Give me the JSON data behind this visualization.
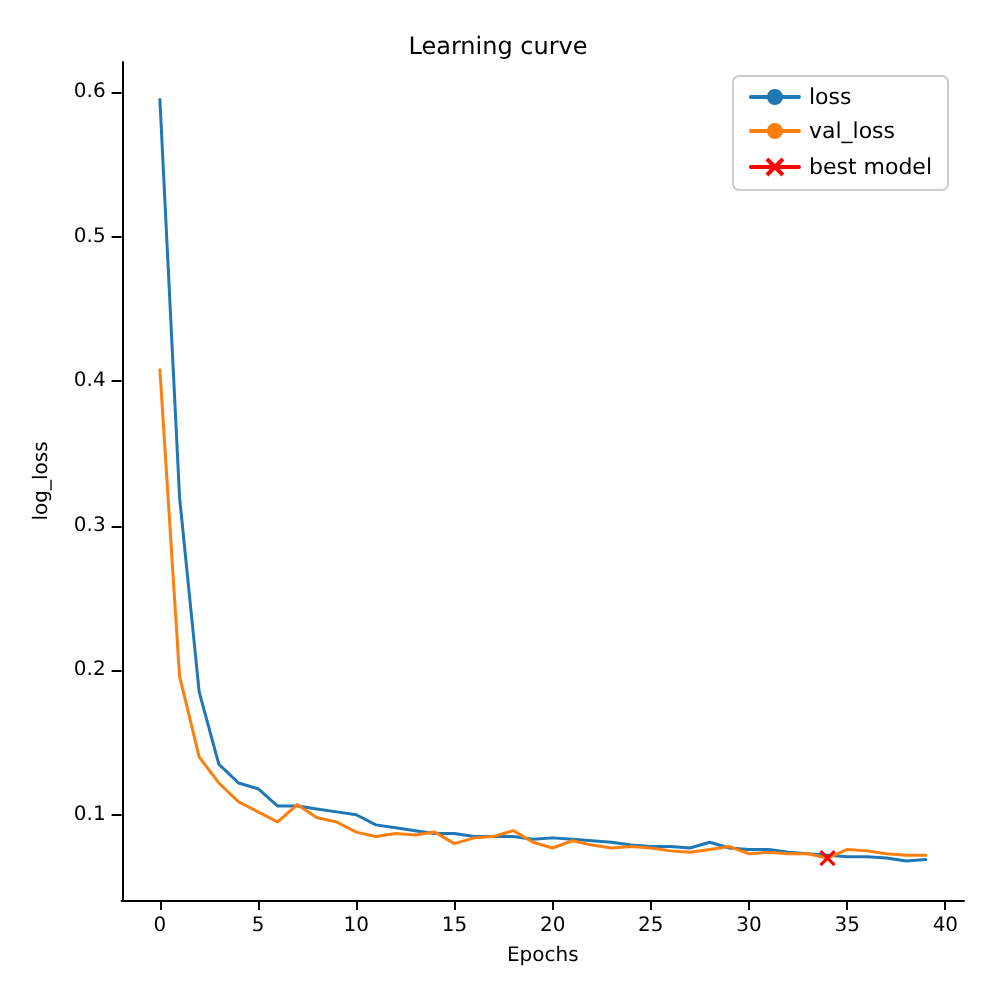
{
  "chart_data": {
    "type": "line",
    "title": "Learning curve",
    "xlabel": "Epochs",
    "ylabel": "log_loss",
    "x": [
      0,
      1,
      2,
      3,
      4,
      5,
      6,
      7,
      8,
      9,
      10,
      11,
      12,
      13,
      14,
      15,
      16,
      17,
      18,
      19,
      20,
      21,
      22,
      23,
      24,
      25,
      26,
      27,
      28,
      29,
      30,
      31,
      32,
      33,
      34,
      35,
      36,
      37,
      38,
      39
    ],
    "xlim": [
      -1.95,
      40.95
    ],
    "ylim": [
      0.041,
      0.621
    ],
    "xticks": [
      0,
      5,
      10,
      15,
      20,
      25,
      30,
      35,
      40
    ],
    "yticks": [
      0.1,
      0.2,
      0.3,
      0.4,
      0.5,
      0.6
    ],
    "grid": false,
    "legend": "top right",
    "series": [
      {
        "name": "loss",
        "color": "#1f77b4",
        "marker": "none",
        "values": [
          0.595,
          0.32,
          0.185,
          0.135,
          0.122,
          0.118,
          0.106,
          0.106,
          0.104,
          0.102,
          0.1,
          0.093,
          0.091,
          0.089,
          0.087,
          0.087,
          0.085,
          0.085,
          0.085,
          0.083,
          0.084,
          0.083,
          0.082,
          0.081,
          0.079,
          0.078,
          0.078,
          0.077,
          0.081,
          0.077,
          0.076,
          0.076,
          0.074,
          0.073,
          0.072,
          0.071,
          0.071,
          0.07,
          0.068,
          0.069
        ]
      },
      {
        "name": "val_loss",
        "color": "#ff7f0e",
        "marker": "none",
        "values": [
          0.408,
          0.196,
          0.14,
          0.122,
          0.109,
          0.102,
          0.095,
          0.107,
          0.098,
          0.095,
          0.088,
          0.085,
          0.087,
          0.086,
          0.088,
          0.08,
          0.084,
          0.085,
          0.089,
          0.081,
          0.077,
          0.082,
          0.079,
          0.077,
          0.078,
          0.077,
          0.075,
          0.074,
          0.076,
          0.078,
          0.073,
          0.074,
          0.073,
          0.073,
          0.07,
          0.076,
          0.075,
          0.073,
          0.072,
          0.072
        ]
      },
      {
        "name": "best model",
        "color": "#ff0000",
        "marker": "cross",
        "x": [
          34
        ],
        "values": [
          0.07
        ]
      }
    ]
  }
}
